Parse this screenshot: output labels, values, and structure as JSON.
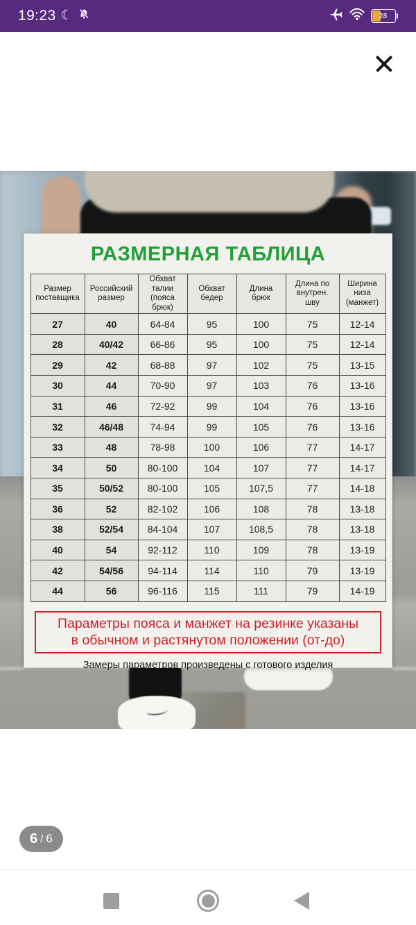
{
  "status_bar": {
    "time": "19:23",
    "moon_glyph": "☾",
    "battery_percent": "28"
  },
  "viewer": {
    "page_current": "6",
    "page_separator": "/",
    "page_total": "6"
  },
  "size_chart": {
    "title": "РАЗМЕРНАЯ ТАБЛИЦА",
    "columns": [
      "Размер\nпоставщика",
      "Российский\nразмер",
      "Обхват\nталии\n(пояса брюк)",
      "Обхват\nбедер",
      "Длина\nбрюк",
      "Длина по\nвнутрен.\nшву",
      "Ширина\nниза\n(манжет)"
    ],
    "rows": [
      [
        "27",
        "40",
        "64-84",
        "95",
        "100",
        "75",
        "12-14"
      ],
      [
        "28",
        "40/42",
        "66-86",
        "95",
        "100",
        "75",
        "12-14"
      ],
      [
        "29",
        "42",
        "68-88",
        "97",
        "102",
        "75",
        "13-15"
      ],
      [
        "30",
        "44",
        "70-90",
        "97",
        "103",
        "76",
        "13-16"
      ],
      [
        "31",
        "46",
        "72-92",
        "99",
        "104",
        "76",
        "13-16"
      ],
      [
        "32",
        "46/48",
        "74-94",
        "99",
        "105",
        "76",
        "13-16"
      ],
      [
        "33",
        "48",
        "78-98",
        "100",
        "106",
        "77",
        "14-17"
      ],
      [
        "34",
        "50",
        "80-100",
        "104",
        "107",
        "77",
        "14-17"
      ],
      [
        "35",
        "50/52",
        "80-100",
        "105",
        "107,5",
        "77",
        "14-18"
      ],
      [
        "36",
        "52",
        "82-102",
        "106",
        "108",
        "78",
        "13-18"
      ],
      [
        "38",
        "52/54",
        "84-104",
        "107",
        "108,5",
        "78",
        "13-18"
      ],
      [
        "40",
        "54",
        "92-112",
        "110",
        "109",
        "78",
        "13-19"
      ],
      [
        "42",
        "54/56",
        "94-114",
        "114",
        "110",
        "79",
        "13-19"
      ],
      [
        "44",
        "56",
        "96-116",
        "115",
        "111",
        "79",
        "14-19"
      ]
    ],
    "warning_line1": "Параметры пояса и манжет на резинке указаны",
    "warning_line2": "в обычном и растянутом положении (от-до)",
    "note": "Замеры параметров произведены с готового изделия"
  },
  "colors": {
    "status_bar_purple": "#572a80",
    "title_green": "#21a038",
    "warning_red": "#cc2027",
    "battery_fill_orange": "#eca43c"
  }
}
